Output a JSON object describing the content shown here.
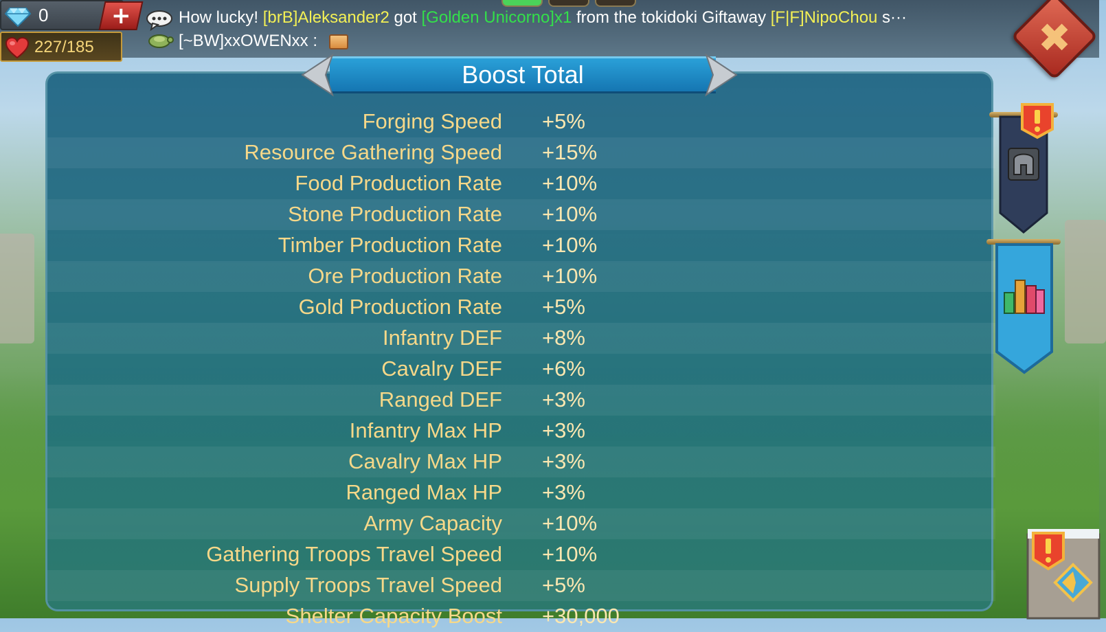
{
  "topbar": {
    "gems": "0",
    "plus_label": "+",
    "hp": "227/185",
    "chat_line1": {
      "prefix": "How lucky! ",
      "player": "[brB]Aleksander2",
      "mid": " got ",
      "item": "[Golden Unicorno]x1",
      "mid2": " from the tokidoki Giftaway ",
      "player2": "[F|F]NipoChou",
      "suffix": " s···"
    },
    "chat_line2": {
      "speaker": "[~BW]xxOWENxx :"
    },
    "close_label": "✖"
  },
  "panel": {
    "title": "Boost Total",
    "rows": [
      {
        "label": "Forging Speed",
        "value": "+5%"
      },
      {
        "label": "Resource Gathering Speed",
        "value": "+15%"
      },
      {
        "label": "Food Production Rate",
        "value": "+10%"
      },
      {
        "label": "Stone Production Rate",
        "value": "+10%"
      },
      {
        "label": "Timber Production Rate",
        "value": "+10%"
      },
      {
        "label": "Ore Production Rate",
        "value": "+10%"
      },
      {
        "label": "Gold Production Rate",
        "value": "+5%"
      },
      {
        "label": "Infantry DEF",
        "value": "+8%"
      },
      {
        "label": "Cavalry DEF",
        "value": "+6%"
      },
      {
        "label": "Ranged DEF",
        "value": "+3%"
      },
      {
        "label": "Infantry Max HP",
        "value": "+3%"
      },
      {
        "label": "Cavalry Max HP",
        "value": "+3%"
      },
      {
        "label": "Ranged Max HP",
        "value": "+3%"
      },
      {
        "label": "Army Capacity",
        "value": "+10%"
      },
      {
        "label": "Gathering Troops Travel Speed",
        "value": "+10%"
      },
      {
        "label": "Supply Troops Travel Speed",
        "value": "+5%"
      },
      {
        "label": "Shelter Capacity Boost",
        "value": "+30,000"
      }
    ]
  },
  "icons": {
    "gem": "diamond-icon",
    "heart": "heart-icon",
    "chat": "chat-bubble-icon",
    "guild": "turtle-icon",
    "letter": "mail-icon",
    "close": "close-icon",
    "alert": "exclamation-badge-icon",
    "helmet": "helmet-icon",
    "chart": "bar-chart-icon"
  },
  "colors": {
    "accent_yellow": "#f3f055",
    "accent_green": "#33e04a",
    "label_color": "#f6d889",
    "panel_bg": "#1c6280",
    "title_banner": "#1f8fc8",
    "close_red": "#c0392b"
  }
}
